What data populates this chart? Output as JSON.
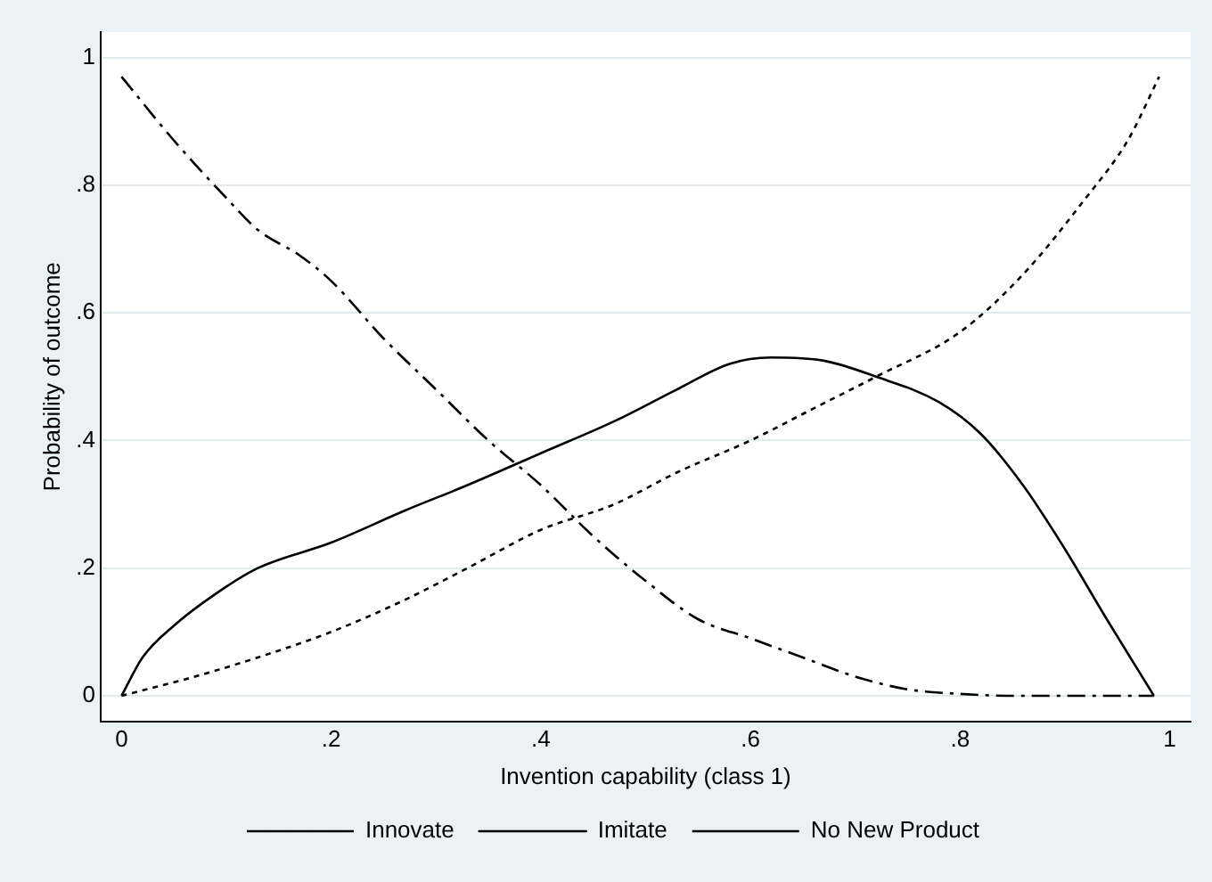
{
  "chart_data": {
    "type": "line",
    "xlabel": "Invention capability (class 1)",
    "ylabel": "Probability of outcome",
    "xlim": [
      -0.02,
      1.02
    ],
    "xticks": [
      0,
      {
        "value": 0.2,
        "label": ".2"
      },
      {
        "value": 0.4,
        "label": ".4"
      },
      {
        "value": 0.6,
        "label": ".6"
      },
      {
        "value": 0.8,
        "label": ".8"
      },
      1
    ],
    "ylim": [
      -0.04,
      1.04
    ],
    "yticks": [
      0,
      {
        "value": 0.2,
        "label": ".2"
      },
      {
        "value": 0.4,
        "label": ".4"
      },
      {
        "value": 0.6,
        "label": ".6"
      },
      {
        "value": 0.8,
        "label": ".8"
      },
      1
    ],
    "grid": "y",
    "legend": "bottom",
    "marker": "none",
    "series": [
      {
        "name": "Innovate",
        "color": "#000000",
        "line_style": "dotted",
        "x": [
          0,
          0.07,
          0.13,
          0.2,
          0.27,
          0.33,
          0.4,
          0.47,
          0.53,
          0.6,
          0.66,
          0.72,
          0.8,
          0.86,
          0.92,
          0.96,
          0.99
        ],
        "values": [
          0,
          0.03,
          0.06,
          0.1,
          0.15,
          0.2,
          0.26,
          0.3,
          0.35,
          0.4,
          0.45,
          0.5,
          0.57,
          0.66,
          0.78,
          0.87,
          0.97
        ]
      },
      {
        "name": "Imitate",
        "color": "#000000",
        "line_style": "solid",
        "x": [
          0,
          0.02,
          0.05,
          0.09,
          0.13,
          0.2,
          0.27,
          0.33,
          0.4,
          0.47,
          0.53,
          0.58,
          0.62,
          0.67,
          0.72,
          0.78,
          0.82,
          0.86,
          0.9,
          0.94,
          0.985
        ],
        "values": [
          0,
          0.06,
          0.11,
          0.16,
          0.2,
          0.24,
          0.29,
          0.33,
          0.38,
          0.43,
          0.48,
          0.52,
          0.53,
          0.525,
          0.5,
          0.46,
          0.41,
          0.33,
          0.23,
          0.12,
          0
        ]
      },
      {
        "name": "No New Product",
        "color": "#000000",
        "line_style": "dashed",
        "x": [
          0,
          0.05,
          0.1,
          0.13,
          0.17,
          0.2,
          0.25,
          0.3,
          0.35,
          0.4,
          0.45,
          0.5,
          0.55,
          0.6,
          0.65,
          0.7,
          0.75,
          0.8,
          0.85,
          0.9,
          0.985
        ],
        "values": [
          0.97,
          0.87,
          0.78,
          0.73,
          0.69,
          0.65,
          0.56,
          0.48,
          0.4,
          0.33,
          0.25,
          0.18,
          0.12,
          0.09,
          0.06,
          0.03,
          0.01,
          0.003,
          0,
          0,
          0
        ]
      }
    ]
  }
}
